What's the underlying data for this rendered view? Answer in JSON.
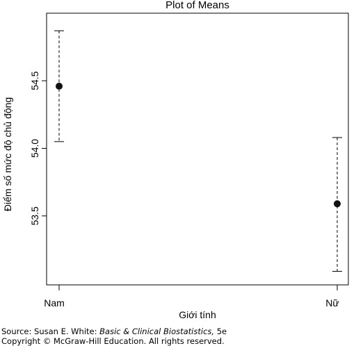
{
  "chart_data": {
    "type": "scatter",
    "title": "Plot of Means",
    "xlabel": "Giới tính",
    "ylabel": "Điểm số mức độ chủ động",
    "categories": [
      "Nam",
      "Nữ"
    ],
    "points": [
      {
        "category": "Nam",
        "mean": 54.46,
        "upper": 54.87,
        "lower": 54.05
      },
      {
        "category": "Nữ",
        "mean": 53.59,
        "upper": 54.08,
        "lower": 53.09
      }
    ],
    "yticks": [
      "53.5",
      "54.0",
      "54.5"
    ],
    "ylim": [
      52.99,
      55.0
    ],
    "grid": false,
    "legend": "none"
  },
  "source": {
    "prefix": "Source: Susan E. White: ",
    "book": "Basic & Clinical Biostatistics,",
    "edition": " 5e",
    "copyright": "Copyright © McGraw-Hill Education. All rights reserved."
  }
}
